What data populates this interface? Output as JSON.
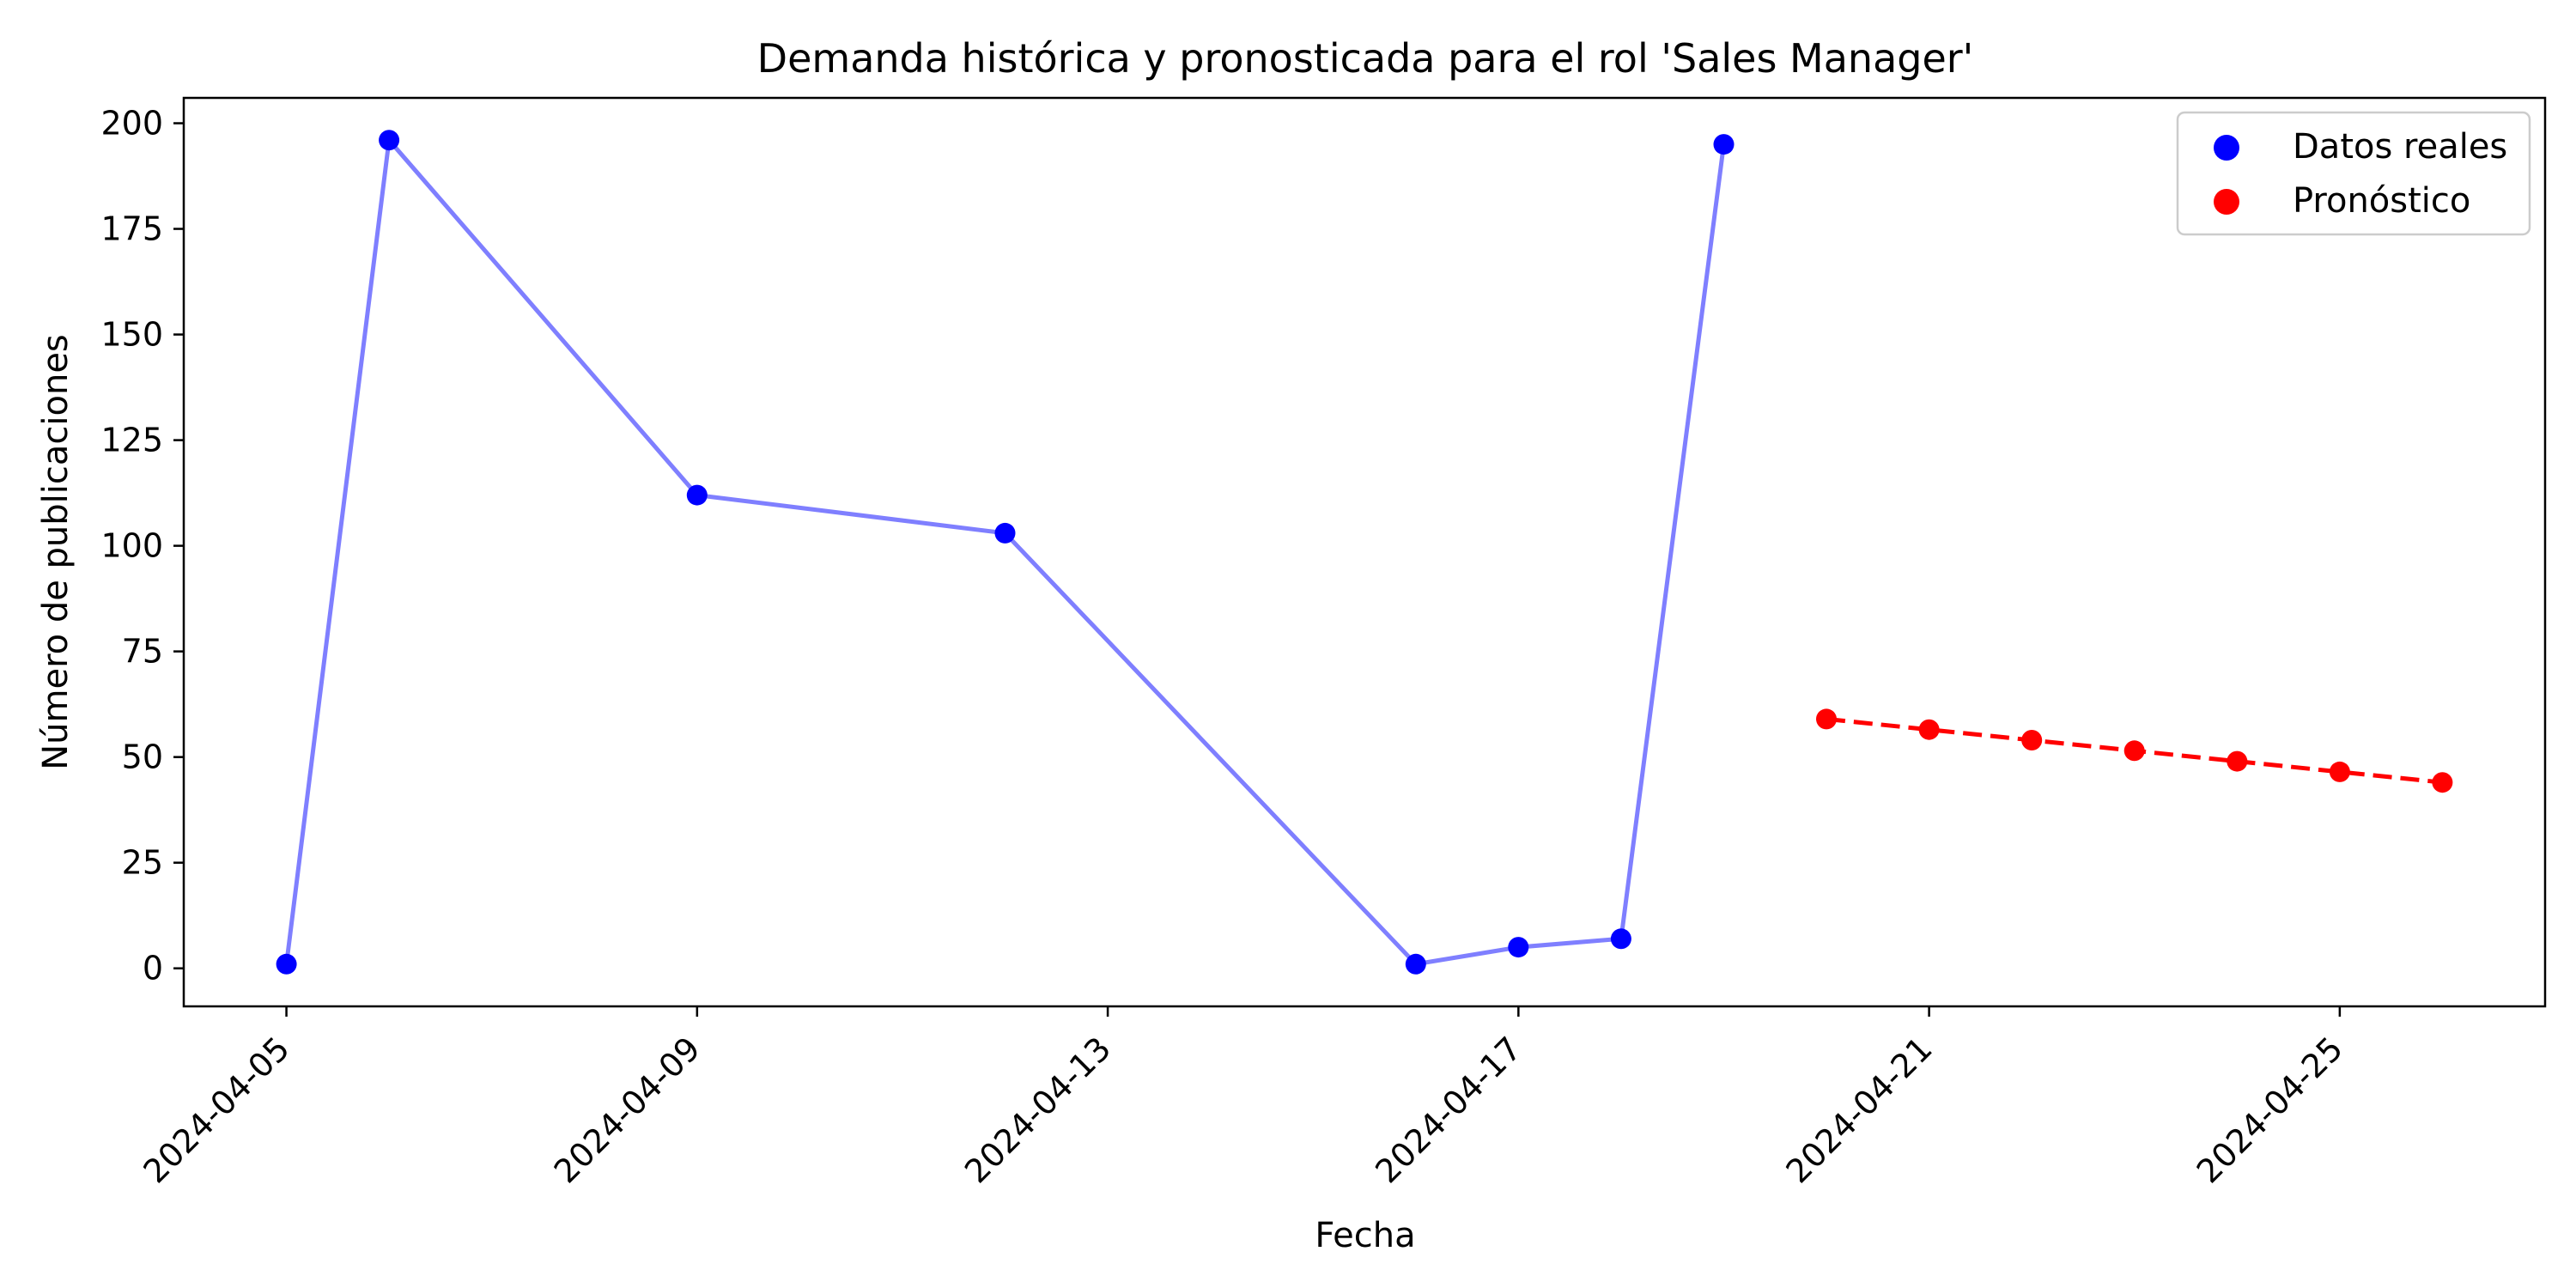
{
  "chart_data": {
    "type": "line",
    "title": "Demanda histórica y pronosticada para el rol 'Sales Manager'",
    "xlabel": "Fecha",
    "ylabel": "Número de publicaciones",
    "x_axis_type": "date",
    "xlim": [
      "2024-04-04",
      "2024-04-27"
    ],
    "ylim": [
      -9,
      206
    ],
    "x_ticks": [
      "2024-04-05",
      "2024-04-09",
      "2024-04-13",
      "2024-04-17",
      "2024-04-21",
      "2024-04-25"
    ],
    "y_ticks": [
      0,
      25,
      50,
      75,
      100,
      125,
      150,
      175,
      200
    ],
    "grid": false,
    "legend_position": "top-right",
    "series": [
      {
        "name": "Datos reales",
        "color": "#0000ff",
        "line_color": "#7f7fff",
        "line_style": "solid",
        "marker": "circle",
        "x": [
          "2024-04-05",
          "2024-04-06",
          "2024-04-09",
          "2024-04-12",
          "2024-04-16",
          "2024-04-17",
          "2024-04-18",
          "2024-04-19"
        ],
        "y": [
          1,
          196,
          112,
          103,
          1,
          5,
          7,
          195
        ]
      },
      {
        "name": "Pronóstico",
        "color": "#ff0000",
        "line_color": "#ff0000",
        "line_style": "dashed",
        "marker": "circle",
        "x": [
          "2024-04-20",
          "2024-04-21",
          "2024-04-22",
          "2024-04-23",
          "2024-04-24",
          "2024-04-25",
          "2024-04-26"
        ],
        "y": [
          59,
          56.5,
          54,
          51.5,
          49,
          46.5,
          44
        ]
      }
    ]
  }
}
